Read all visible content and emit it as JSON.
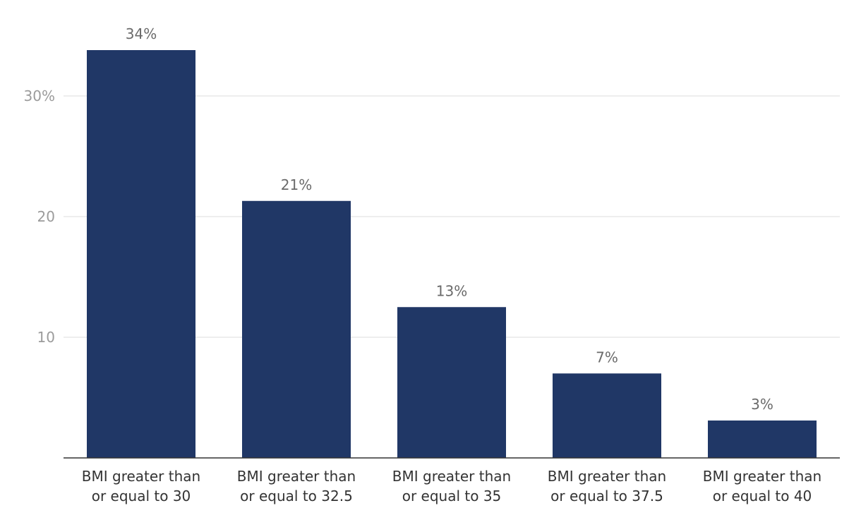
{
  "chart_data": {
    "type": "bar",
    "title": "",
    "xlabel": "",
    "ylabel": "",
    "grid": true,
    "ylim": [
      0,
      37.5
    ],
    "yticks": [
      {
        "value": 10,
        "label": "10"
      },
      {
        "value": 20,
        "label": "20"
      },
      {
        "value": 30,
        "label": "30%"
      }
    ],
    "categories": [
      {
        "line1": "BMI greater than",
        "line2": "or equal to 30"
      },
      {
        "line1": "BMI greater than",
        "line2": "or equal to 32.5"
      },
      {
        "line1": "BMI greater than",
        "line2": "or equal to 35"
      },
      {
        "line1": "BMI greater than",
        "line2": "or equal to 37.5"
      },
      {
        "line1": "BMI greater than",
        "line2": "or equal to 40"
      }
    ],
    "values": [
      33.8,
      21.3,
      12.5,
      7.0,
      3.1
    ],
    "data_labels": [
      "34%",
      "21%",
      "13%",
      "7%",
      "3%"
    ],
    "colors": {
      "bar": "#203766"
    }
  }
}
